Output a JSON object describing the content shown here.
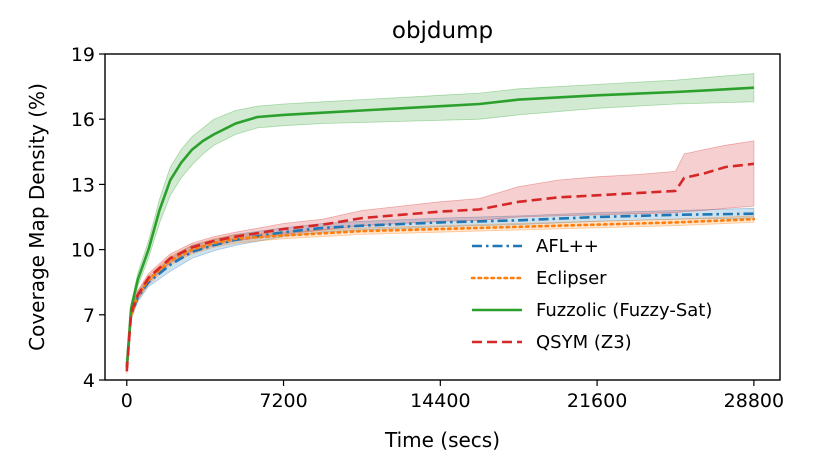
{
  "chart_data": {
    "type": "line",
    "title": "objdump",
    "xlabel": "Time (secs)",
    "ylabel": "Coverage Map Density (%)",
    "xlim": [
      -1000,
      30000
    ],
    "ylim": [
      4,
      19
    ],
    "xticks": [
      0,
      7200,
      14400,
      21600,
      28800
    ],
    "yticks": [
      4,
      7,
      10,
      13,
      16,
      19
    ],
    "legend_position": "lower-right",
    "series": [
      {
        "name": "AFL++",
        "color": "#1f77b4",
        "dash": "dashdot",
        "x": [
          0,
          200,
          500,
          1000,
          2000,
          3000,
          4000,
          5000,
          7200,
          9000,
          10800,
          14400,
          18000,
          21600,
          25200,
          28800
        ],
        "y": [
          4.6,
          7.0,
          7.8,
          8.5,
          9.3,
          9.9,
          10.2,
          10.45,
          10.8,
          11.0,
          11.1,
          11.25,
          11.35,
          11.5,
          11.6,
          11.65
        ],
        "lower": [
          4.5,
          6.8,
          7.6,
          8.3,
          9.0,
          9.6,
          9.95,
          10.2,
          10.6,
          10.8,
          10.9,
          11.05,
          11.15,
          11.3,
          11.4,
          11.45
        ],
        "upper": [
          4.7,
          7.2,
          8.0,
          8.7,
          9.6,
          10.2,
          10.45,
          10.7,
          11.0,
          11.2,
          11.3,
          11.45,
          11.55,
          11.7,
          11.8,
          11.9
        ]
      },
      {
        "name": "Eclipser",
        "color": "#ff7f0e",
        "dash": "dotted",
        "x": [
          0,
          200,
          500,
          1000,
          2000,
          3000,
          4000,
          5000,
          7200,
          9000,
          10800,
          14400,
          18000,
          21600,
          25200,
          28800
        ],
        "y": [
          4.6,
          7.0,
          7.9,
          8.6,
          9.5,
          10.0,
          10.3,
          10.5,
          10.65,
          10.75,
          10.85,
          10.95,
          11.05,
          11.15,
          11.25,
          11.4
        ],
        "lower": [
          4.5,
          6.8,
          7.7,
          8.4,
          9.3,
          9.8,
          10.1,
          10.3,
          10.5,
          10.6,
          10.7,
          10.8,
          10.9,
          11.0,
          11.1,
          11.25
        ],
        "upper": [
          4.7,
          7.2,
          8.1,
          8.8,
          9.7,
          10.2,
          10.5,
          10.7,
          10.8,
          10.9,
          11.0,
          11.1,
          11.2,
          11.3,
          11.4,
          11.55
        ]
      },
      {
        "name": "Fuzzolic (Fuzzy-Sat)",
        "color": "#2ca02c",
        "dash": "solid",
        "x": [
          0,
          200,
          500,
          1000,
          1500,
          2000,
          2500,
          3000,
          3500,
          4000,
          5000,
          6000,
          7200,
          9000,
          10800,
          12600,
          14400,
          16200,
          18000,
          21600,
          25200,
          27000,
          28800
        ],
        "y": [
          4.6,
          7.3,
          8.6,
          10.0,
          11.8,
          13.2,
          14.0,
          14.6,
          15.0,
          15.3,
          15.8,
          16.1,
          16.2,
          16.3,
          16.4,
          16.5,
          16.6,
          16.7,
          16.9,
          17.1,
          17.25,
          17.35,
          17.45
        ],
        "lower": [
          4.5,
          7.1,
          8.3,
          9.6,
          11.2,
          12.5,
          13.3,
          13.9,
          14.4,
          14.8,
          15.3,
          15.6,
          15.7,
          15.8,
          15.85,
          15.9,
          15.95,
          16.0,
          16.2,
          16.5,
          16.7,
          16.75,
          16.8
        ],
        "upper": [
          4.7,
          7.5,
          8.9,
          10.4,
          12.3,
          13.8,
          14.6,
          15.2,
          15.6,
          16.0,
          16.4,
          16.6,
          16.7,
          16.8,
          16.9,
          17.0,
          17.1,
          17.2,
          17.4,
          17.6,
          17.8,
          17.95,
          18.1
        ]
      },
      {
        "name": "QSYM (Z3)",
        "color": "#d62728",
        "dash": "dashed",
        "x": [
          0,
          200,
          500,
          1000,
          2000,
          3000,
          4000,
          5000,
          7200,
          9000,
          10800,
          12600,
          14400,
          16200,
          18000,
          19800,
          21600,
          23400,
          25200,
          25600,
          26500,
          27500,
          28800
        ],
        "y": [
          4.4,
          7.1,
          7.9,
          8.7,
          9.6,
          10.1,
          10.4,
          10.6,
          10.95,
          11.15,
          11.45,
          11.6,
          11.75,
          11.85,
          12.2,
          12.4,
          12.5,
          12.6,
          12.7,
          13.3,
          13.5,
          13.8,
          13.95
        ],
        "lower": [
          4.3,
          6.9,
          7.7,
          8.5,
          9.4,
          9.9,
          10.2,
          10.4,
          10.7,
          10.9,
          11.1,
          11.2,
          11.3,
          11.35,
          11.5,
          11.55,
          11.6,
          11.65,
          11.7,
          11.75,
          11.8,
          11.9,
          12.0
        ],
        "upper": [
          4.5,
          7.3,
          8.1,
          8.9,
          9.8,
          10.3,
          10.6,
          10.8,
          11.2,
          11.4,
          11.8,
          12.0,
          12.2,
          12.35,
          12.9,
          13.2,
          13.35,
          13.45,
          13.6,
          14.4,
          14.6,
          14.8,
          15.0
        ]
      }
    ]
  }
}
